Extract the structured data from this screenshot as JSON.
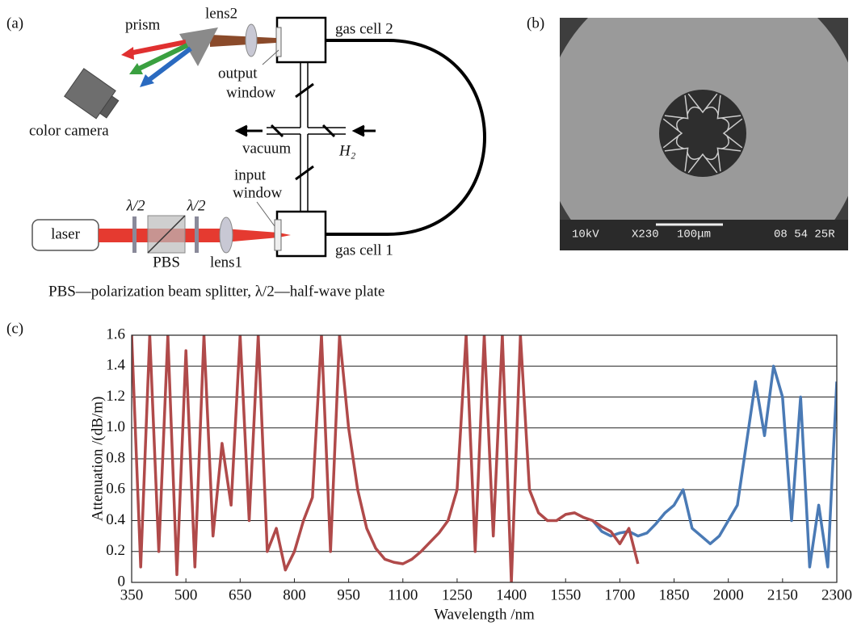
{
  "diagram": {
    "panel_label": "(a)",
    "prism": "prism",
    "lens2": "lens2",
    "gas_cell_2": "gas cell 2",
    "output_window": [
      "output",
      "window"
    ],
    "color_camera": "color camera",
    "vacuum": "vacuum",
    "h2": "H₂",
    "input_window": [
      "input",
      "window"
    ],
    "laser": "laser",
    "half_wave_1": "λ/2",
    "half_wave_2": "λ/2",
    "pbs": "PBS",
    "lens1": "lens1",
    "gas_cell_1": "gas cell 1",
    "caption": "PBS—polarization beam splitter, λ/2—half-wave plate"
  },
  "image": {
    "panel_label": "(b)",
    "texts": [
      "10kV",
      "X230",
      "100μm",
      "08 54 25R"
    ]
  },
  "chart_data": {
    "type": "line",
    "panel_label": "(c)",
    "x_label": "Wavelength /nm",
    "y_label": "Attenuation /(dB/m)",
    "x": [
      350,
      375,
      400,
      425,
      450,
      475,
      500,
      525,
      550,
      575,
      600,
      625,
      650,
      675,
      700,
      725,
      750,
      775,
      800,
      825,
      850,
      875,
      900,
      925,
      950,
      975,
      1000,
      1025,
      1050,
      1075,
      1100,
      1125,
      1150,
      1175,
      1200,
      1225,
      1250,
      1275,
      1300,
      1325,
      1350,
      1375,
      1400,
      1425,
      1450,
      1475,
      1500,
      1525,
      1550,
      1575,
      1600,
      1625,
      1650,
      1675,
      1700,
      1725,
      1750,
      1775,
      1800,
      1825,
      1850,
      1875,
      1900,
      1925,
      1950,
      1975,
      2000,
      2025,
      2050,
      2075,
      2100,
      2125,
      2150,
      2175,
      2200,
      2225,
      2250,
      2275,
      2300
    ],
    "series": [
      {
        "color": "#4a7ab5",
        "values": [
          null,
          null,
          null,
          null,
          null,
          null,
          null,
          null,
          null,
          null,
          null,
          null,
          null,
          null,
          null,
          null,
          null,
          null,
          null,
          null,
          null,
          null,
          null,
          null,
          null,
          null,
          null,
          null,
          null,
          null,
          null,
          null,
          null,
          null,
          null,
          null,
          null,
          null,
          null,
          null,
          null,
          null,
          null,
          null,
          null,
          null,
          null,
          null,
          null,
          null,
          null,
          0.4,
          0.33,
          0.3,
          0.32,
          0.33,
          0.3,
          0.32,
          0.38,
          0.45,
          0.5,
          0.6,
          0.35,
          0.3,
          0.25,
          0.3,
          0.4,
          0.5,
          0.9,
          1.3,
          0.95,
          1.4,
          1.2,
          0.4,
          1.2,
          0.1,
          0.5,
          0.1,
          1.3
        ]
      },
      {
        "color": "#b04a4a",
        "values": [
          1.6,
          0.1,
          1.6,
          0.2,
          1.6,
          0.05,
          1.5,
          0.1,
          1.6,
          0.3,
          0.9,
          0.5,
          1.6,
          0.4,
          1.6,
          0.2,
          0.35,
          0.08,
          0.2,
          0.4,
          0.55,
          1.6,
          0.2,
          1.6,
          1.0,
          0.6,
          0.35,
          0.22,
          0.15,
          0.13,
          0.12,
          0.15,
          0.2,
          0.26,
          0.32,
          0.4,
          0.6,
          1.6,
          0.2,
          1.6,
          0.3,
          1.6,
          0,
          1.6,
          0.6,
          0.45,
          0.4,
          0.4,
          0.44,
          0.45,
          0.42,
          0.4,
          0.36,
          0.33,
          0.25,
          0.35,
          0.12,
          null,
          null,
          null,
          null,
          null,
          null,
          null,
          null,
          null,
          null,
          null,
          null,
          null,
          null,
          null,
          null,
          null,
          null,
          null,
          null,
          null,
          null
        ]
      }
    ],
    "xlim": [
      350,
      2300
    ],
    "ylim": [
      0,
      1.6
    ],
    "xticks": [
      350,
      500,
      650,
      800,
      950,
      1100,
      1250,
      1400,
      1550,
      1700,
      1850,
      2000,
      2150,
      2300
    ],
    "yticks": [
      0,
      0.2,
      0.4,
      0.6,
      0.8,
      {
        "value": 1,
        "label": "1.0"
      },
      1.2,
      1.4,
      1.6
    ],
    "grid": true
  }
}
